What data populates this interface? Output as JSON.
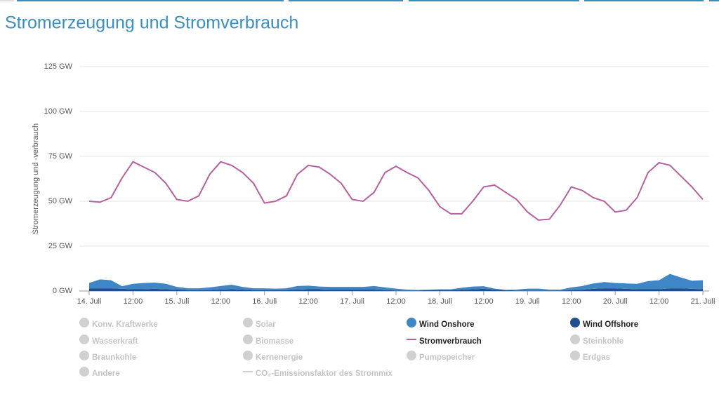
{
  "chart_data": {
    "type": "line",
    "title": "Stromerzeugung und Stromverbrauch",
    "y_label": "Stromerzeugung und -verbrauch",
    "xlim": [
      0,
      168
    ],
    "xticks": [
      {
        "value": 0,
        "label": "14. Juli"
      },
      {
        "value": 12,
        "label": "12:00"
      },
      {
        "value": 24,
        "label": "15. Juli"
      },
      {
        "value": 36,
        "label": "12:00"
      },
      {
        "value": 48,
        "label": "16. Juli"
      },
      {
        "value": 60,
        "label": "12:00"
      },
      {
        "value": 72,
        "label": "17. Juli"
      },
      {
        "value": 84,
        "label": "12:00"
      },
      {
        "value": 96,
        "label": "18. Juli"
      },
      {
        "value": 108,
        "label": "12:00"
      },
      {
        "value": 120,
        "label": "19. Juli"
      },
      {
        "value": 132,
        "label": "12:00"
      },
      {
        "value": 144,
        "label": "20. Juli"
      },
      {
        "value": 156,
        "label": "12:00"
      },
      {
        "value": 168,
        "label": "21. Juli"
      }
    ],
    "ylim": [
      0,
      125
    ],
    "yticks": [
      {
        "value": 0,
        "label": "0 GW"
      },
      {
        "value": 25,
        "label": "25 GW"
      },
      {
        "value": 50,
        "label": "50 GW"
      },
      {
        "value": 75,
        "label": "75 GW"
      },
      {
        "value": 100,
        "label": "100 GW"
      },
      {
        "value": 125,
        "label": "125 GW"
      }
    ],
    "grid": true,
    "x": [
      0,
      3,
      6,
      9,
      12,
      15,
      18,
      21,
      24,
      27,
      30,
      33,
      36,
      39,
      42,
      45,
      48,
      51,
      54,
      57,
      60,
      63,
      66,
      69,
      72,
      75,
      78,
      81,
      84,
      87,
      90,
      93,
      96,
      99,
      102,
      105,
      108,
      111,
      114,
      117,
      120,
      123,
      126,
      129,
      132,
      135,
      138,
      141,
      144,
      147,
      150,
      153,
      156,
      159,
      162,
      165,
      168
    ],
    "series": [
      {
        "name": "Stromverbrauch",
        "type": "line",
        "color": "#b5619f",
        "values": [
          50,
          49.5,
          52,
          63,
          72,
          69,
          66,
          60,
          51,
          50,
          53,
          65,
          72,
          70,
          66,
          60,
          49,
          50,
          53,
          65,
          70,
          69,
          65,
          60,
          51,
          50,
          55,
          66,
          69.5,
          66,
          63,
          56,
          47,
          43,
          43,
          50,
          58,
          59,
          55,
          51,
          44,
          39.5,
          40,
          48,
          58,
          56,
          52,
          50,
          44,
          45,
          52,
          66,
          71.5,
          70,
          64,
          58,
          51
        ]
      },
      {
        "name": "Wind Onshore",
        "type": "area",
        "color": "#3f86c7",
        "values": [
          3,
          5,
          4.5,
          1.5,
          3,
          3.5,
          3.5,
          3,
          1.5,
          1,
          1,
          1.5,
          2,
          2.5,
          1.5,
          1,
          1,
          0.8,
          1,
          2,
          2,
          1.5,
          1.5,
          1.5,
          1.5,
          1.5,
          2,
          1.5,
          1,
          0.5,
          0.3,
          0.3,
          0.5,
          0.5,
          1,
          1.5,
          1.5,
          0.5,
          0.2,
          0.5,
          1,
          1,
          0.5,
          0.5,
          1.5,
          2,
          3,
          3.5,
          3,
          3,
          3,
          4.5,
          5,
          8,
          6,
          4.5,
          5
        ]
      },
      {
        "name": "Wind Offshore",
        "type": "area",
        "color": "#1f4f8e",
        "values": [
          1.5,
          1.5,
          1.5,
          1.2,
          1,
          1,
          1.2,
          1,
          0.8,
          0.5,
          0.5,
          0.5,
          0.8,
          1,
          0.8,
          0.5,
          0.5,
          0.5,
          0.5,
          0.8,
          1,
          1,
          0.8,
          0.8,
          0.8,
          0.8,
          0.8,
          0.5,
          0.3,
          0.3,
          0.3,
          0.5,
          0.5,
          0.5,
          0.8,
          1,
          1.2,
          0.8,
          0.5,
          0.3,
          0.3,
          0.3,
          0.3,
          0.3,
          0.5,
          0.8,
          1.2,
          1.5,
          1.5,
          1.2,
          1,
          1,
          1,
          1.5,
          1.5,
          1.2,
          1
        ]
      }
    ],
    "inactive_legend": [
      "Konv. Kraftwerke",
      "Wasserkraft",
      "Braunkohle",
      "Andere",
      "Solar",
      "Biomasse",
      "Kernenergie",
      "CO₂-Emissionsfaktor des Strommix",
      "Pumpspeicher",
      "Steinkohle",
      "Erdgas"
    ]
  }
}
